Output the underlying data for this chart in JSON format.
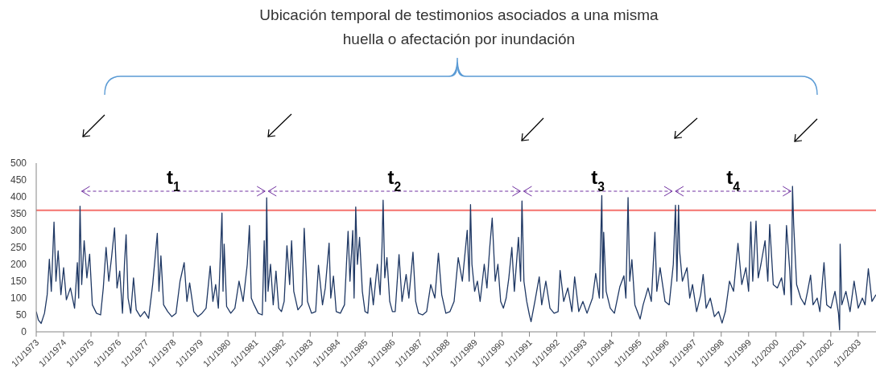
{
  "chart_data": {
    "type": "line",
    "title": "Ubicación temporal de testimonios asociados a una misma huella o afectación por inundación",
    "color": "#1f3864",
    "x": [
      "1973-01-01",
      "1973-01-30",
      "1973-03-08",
      "1973-04-21",
      "1973-05-27",
      "1973-06-25",
      "1973-07-21",
      "1973-08-26",
      "1973-09-21",
      "1973-10-20",
      "1973-11-26",
      "1974-01-01",
      "1974-02-07",
      "1974-04-02",
      "1974-05-27",
      "1974-07-03",
      "1974-07-21",
      "1974-08-08",
      "1974-08-30",
      "1974-10-02",
      "1974-11-07",
      "1974-12-14",
      "1975-01-19",
      "1975-03-15",
      "1975-05-09",
      "1975-06-14",
      "1975-07-21",
      "1975-08-26",
      "1975-10-02",
      "1975-11-11",
      "1975-12-14",
      "1976-01-19",
      "1976-02-25",
      "1976-03-22",
      "1976-04-13",
      "1976-05-09",
      "1976-06-14",
      "1976-07-21",
      "1976-08-26",
      "1976-10-20",
      "1976-12-14",
      "1977-02-07",
      "1977-04-02",
      "1977-06-03",
      "1977-06-25",
      "1977-07-21",
      "1977-08-26",
      "1977-10-20",
      "1977-12-14",
      "1978-02-07",
      "1978-04-02",
      "1978-05-27",
      "1978-07-03",
      "1978-08-08",
      "1978-10-02",
      "1978-11-26",
      "1979-01-19",
      "1979-03-15",
      "1979-05-09",
      "1979-06-14",
      "1979-07-21",
      "1979-08-26",
      "1979-10-13",
      "1979-10-27",
      "1979-11-11",
      "1979-12-14",
      "1980-02-07",
      "1980-04-02",
      "1980-05-27",
      "1980-07-21",
      "1980-09-14",
      "1980-10-13",
      "1980-11-07",
      "1980-12-14",
      "1981-02-07",
      "1981-04-02",
      "1981-04-28",
      "1981-05-16",
      "1981-05-31",
      "1981-06-18",
      "1981-07-21",
      "1981-08-26",
      "1981-10-02",
      "1981-11-07",
      "1981-12-14",
      "1982-01-19",
      "1982-02-25",
      "1982-04-02",
      "1982-04-28",
      "1982-05-27",
      "1982-07-21",
      "1982-09-14",
      "1982-10-13",
      "1982-11-26",
      "1983-01-19",
      "1983-03-15",
      "1983-04-21",
      "1983-06-14",
      "1983-07-21",
      "1983-09-10",
      "1983-10-02",
      "1983-11-07",
      "1983-12-14",
      "1984-02-07",
      "1984-04-02",
      "1984-05-20",
      "1984-06-14",
      "1984-07-21",
      "1984-08-08",
      "1984-08-30",
      "1984-09-21",
      "1984-10-20",
      "1984-11-26",
      "1985-01-01",
      "1985-02-07",
      "1985-03-15",
      "1985-04-21",
      "1985-06-14",
      "1985-07-21",
      "1985-08-15",
      "1985-08-30",
      "1985-09-21",
      "1985-10-20",
      "1985-11-26",
      "1986-01-01",
      "1986-02-07",
      "1986-03-30",
      "1986-05-09",
      "1986-07-03",
      "1986-08-08",
      "1986-10-02",
      "1986-11-07",
      "1986-12-14",
      "1987-02-07",
      "1987-04-02",
      "1987-05-27",
      "1987-07-21",
      "1987-09-06",
      "1987-10-20",
      "1987-12-14",
      "1988-02-07",
      "1988-04-02",
      "1988-05-27",
      "1988-07-21",
      "1988-09-24",
      "1988-10-20",
      "1988-11-07",
      "1988-11-26",
      "1989-01-01",
      "1989-02-07",
      "1989-03-15",
      "1989-05-09",
      "1989-06-14",
      "1989-07-21",
      "1989-08-23",
      "1989-10-02",
      "1989-11-07",
      "1989-12-14",
      "1990-01-19",
      "1990-02-25",
      "1990-04-02",
      "1990-05-12",
      "1990-06-14",
      "1990-08-08",
      "1990-09-06",
      "1990-09-24",
      "1990-10-20",
      "1990-11-26",
      "1991-01-01",
      "1991-01-23",
      "1991-03-15",
      "1991-05-12",
      "1991-06-14",
      "1991-08-08",
      "1991-10-02",
      "1991-11-26",
      "1992-01-19",
      "1992-02-14",
      "1992-04-02",
      "1992-05-27",
      "1992-07-21",
      "1992-08-26",
      "1992-10-20",
      "1992-12-14",
      "1993-02-07",
      "1993-04-21",
      "1993-06-03",
      "1993-07-21",
      "1993-08-23",
      "1993-09-06",
      "1993-09-17",
      "1993-10-20",
      "1993-12-14",
      "1994-02-07",
      "1994-04-21",
      "1994-06-14",
      "1994-07-10",
      "1994-08-08",
      "1994-08-30",
      "1994-09-28",
      "1994-11-07",
      "1995-01-16",
      "1995-02-25",
      "1995-05-01",
      "1995-06-14",
      "1995-08-01",
      "1995-08-26",
      "1995-10-09",
      "1995-12-14",
      "1996-02-07",
      "1996-04-02",
      "1996-05-01",
      "1996-05-20",
      "1996-06-11",
      "1996-06-25",
      "1996-08-01",
      "1996-10-02",
      "1996-11-07",
      "1996-12-14",
      "1997-02-07",
      "1997-04-02",
      "1997-05-05",
      "1997-06-14",
      "1997-08-08",
      "1997-10-02",
      "1997-11-26",
      "1998-01-12",
      "1998-02-25",
      "1998-04-21",
      "1998-06-14",
      "1998-08-12",
      "1998-10-02",
      "1998-11-26",
      "1999-01-01",
      "1999-01-30",
      "1999-02-25",
      "1999-04-10",
      "1999-05-09",
      "1999-06-14",
      "1999-08-08",
      "1999-09-14",
      "1999-10-09",
      "1999-11-26",
      "2000-01-19",
      "2000-03-15",
      "2000-04-21",
      "2000-05-20",
      "2000-07-03",
      "2000-07-24",
      "2000-08-08",
      "2000-08-23",
      "2000-10-02",
      "2000-11-26",
      "2001-01-19",
      "2001-02-25",
      "2001-04-06",
      "2001-05-09",
      "2001-07-03",
      "2001-08-08",
      "2001-10-02",
      "2001-11-07",
      "2002-01-01",
      "2002-02-25",
      "2002-04-13",
      "2002-04-28",
      "2002-05-05",
      "2002-05-27",
      "2002-07-21",
      "2002-09-14",
      "2002-11-07",
      "2003-01-01",
      "2003-02-25",
      "2003-04-02",
      "2003-05-16",
      "2003-07-03",
      "2003-08-26"
    ],
    "values": [
      60,
      35,
      25,
      55,
      110,
      215,
      120,
      325,
      150,
      240,
      110,
      190,
      95,
      130,
      70,
      205,
      100,
      372,
      140,
      270,
      160,
      230,
      80,
      55,
      50,
      130,
      250,
      150,
      220,
      308,
      130,
      180,
      55,
      200,
      288,
      100,
      55,
      160,
      65,
      45,
      60,
      40,
      140,
      292,
      120,
      225,
      80,
      60,
      45,
      55,
      150,
      205,
      90,
      145,
      60,
      45,
      55,
      70,
      195,
      90,
      140,
      70,
      352,
      120,
      260,
      75,
      55,
      70,
      150,
      90,
      200,
      315,
      100,
      80,
      55,
      50,
      270,
      90,
      397,
      120,
      200,
      80,
      180,
      70,
      60,
      90,
      255,
      140,
      270,
      120,
      65,
      80,
      307,
      90,
      55,
      60,
      197,
      80,
      130,
      263,
      100,
      165,
      60,
      55,
      80,
      298,
      150,
      300,
      100,
      370,
      200,
      280,
      120,
      60,
      55,
      160,
      80,
      200,
      110,
      250,
      390,
      160,
      220,
      90,
      60,
      60,
      229,
      90,
      170,
      100,
      236,
      90,
      55,
      50,
      60,
      140,
      100,
      233,
      110,
      55,
      60,
      90,
      220,
      150,
      301,
      150,
      377,
      200,
      120,
      150,
      90,
      200,
      130,
      250,
      337,
      150,
      200,
      90,
      70,
      100,
      160,
      250,
      120,
      280,
      150,
      388,
      150,
      90,
      50,
      30,
      90,
      163,
      80,
      150,
      70,
      55,
      60,
      182,
      90,
      130,
      60,
      163,
      60,
      90,
      55,
      100,
      173,
      100,
      404,
      100,
      295,
      120,
      70,
      55,
      134,
      166,
      100,
      398,
      150,
      214,
      80,
      38,
      80,
      130,
      90,
      295,
      120,
      190,
      90,
      80,
      200,
      375,
      150,
      375,
      240,
      150,
      190,
      100,
      140,
      60,
      110,
      170,
      70,
      100,
      45,
      60,
      26,
      60,
      150,
      120,
      262,
      140,
      190,
      120,
      326,
      150,
      328,
      160,
      200,
      270,
      150,
      318,
      140,
      130,
      160,
      110,
      315,
      180,
      80,
      431,
      320,
      140,
      100,
      80,
      120,
      168,
      80,
      100,
      60,
      205,
      80,
      70,
      120,
      55,
      6,
      260,
      80,
      120,
      60,
      150,
      70,
      100,
      80,
      187,
      90,
      110
    ],
    "xlim": [
      "1973-01-01",
      "2003-08-26"
    ],
    "xticks": [
      {
        "value": "1973-01-01",
        "label": "1/1/1973"
      },
      {
        "value": "1974-01-01",
        "label": "1/1/1974"
      },
      {
        "value": "1975-01-01",
        "label": "1/1/1975"
      },
      {
        "value": "1976-01-01",
        "label": "1/1/1976"
      },
      {
        "value": "1977-01-01",
        "label": "1/1/1977"
      },
      {
        "value": "1978-01-01",
        "label": "1/1/1978"
      },
      {
        "value": "1979-01-01",
        "label": "1/1/1979"
      },
      {
        "value": "1980-01-01",
        "label": "1/1/1980"
      },
      {
        "value": "1981-01-01",
        "label": "1/1/1981"
      },
      {
        "value": "1982-01-01",
        "label": "1/1/1982"
      },
      {
        "value": "1983-01-01",
        "label": "1/1/1983"
      },
      {
        "value": "1984-01-01",
        "label": "1/1/1984"
      },
      {
        "value": "1985-01-01",
        "label": "1/1/1985"
      },
      {
        "value": "1986-01-01",
        "label": "1/1/1986"
      },
      {
        "value": "1987-01-01",
        "label": "1/1/1987"
      },
      {
        "value": "1988-01-01",
        "label": "1/1/1988"
      },
      {
        "value": "1989-01-01",
        "label": "1/1/1989"
      },
      {
        "value": "1990-01-01",
        "label": "1/1/1990"
      },
      {
        "value": "1991-01-01",
        "label": "1/1/1991"
      },
      {
        "value": "1992-01-01",
        "label": "1/1/1992"
      },
      {
        "value": "1993-01-01",
        "label": "1/1/1993"
      },
      {
        "value": "1994-01-01",
        "label": "1/1/1994"
      },
      {
        "value": "1995-01-01",
        "label": "1/1/1995"
      },
      {
        "value": "1996-01-01",
        "label": "1/1/1996"
      },
      {
        "value": "1997-01-01",
        "label": "1/1/1997"
      },
      {
        "value": "1998-01-01",
        "label": "1/1/1998"
      },
      {
        "value": "1999-01-01",
        "label": "1/1/1999"
      },
      {
        "value": "2000-01-01",
        "label": "1/1/2000"
      },
      {
        "value": "2001-01-01",
        "label": "1/1/2001"
      },
      {
        "value": "2002-01-01",
        "label": "1/1/2002"
      },
      {
        "value": "2003-01-01",
        "label": "1/1/2003"
      }
    ],
    "ylim": [
      0,
      500
    ],
    "yticks": [
      0,
      50,
      100,
      150,
      200,
      250,
      300,
      350,
      400,
      450,
      500
    ],
    "ref_lines": [
      {
        "axis": "y",
        "value": 360,
        "color": "#f4726d"
      }
    ],
    "annotations": [
      "t$_{1}$",
      "t$_{2}$",
      "t$_{3}$",
      "t$_{4}$"
    ]
  }
}
